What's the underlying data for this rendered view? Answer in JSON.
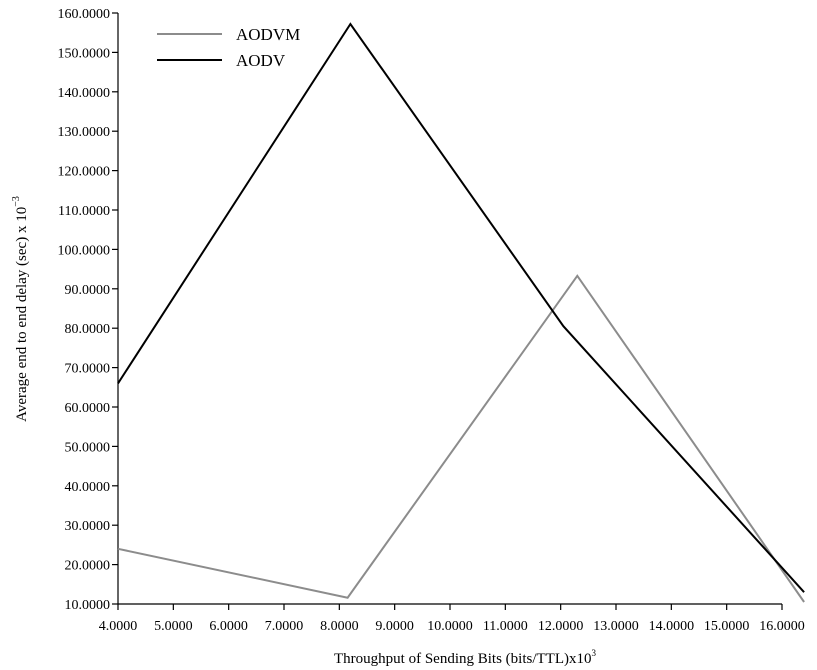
{
  "chart_data": {
    "type": "line",
    "xlabel": "Throughput of Sending Bits (bits/TTL)x10",
    "xlabel_superscript": "3",
    "ylabel": "Average end to end delay (sec) x 10",
    "ylabel_superscript": "−3",
    "xlim": [
      4,
      16
    ],
    "ylim": [
      10,
      160
    ],
    "x_ticks": [
      4,
      5,
      6,
      7,
      8,
      9,
      10,
      11,
      12,
      13,
      14,
      15,
      16
    ],
    "x_tick_labels": [
      "4.0000",
      "5.0000",
      "6.0000",
      "7.0000",
      "8.0000",
      "9.0000",
      "10.0000",
      "11.0000",
      "12.0000",
      "13.0000",
      "14.0000",
      "15.0000",
      "16.0000"
    ],
    "y_ticks": [
      10,
      20,
      30,
      40,
      50,
      60,
      70,
      80,
      90,
      100,
      110,
      120,
      130,
      140,
      150,
      160
    ],
    "y_tick_labels": [
      "10.0000",
      "20.0000",
      "30.0000",
      "40.0000",
      "50.0000",
      "60.0000",
      "70.0000",
      "80.0000",
      "90.0000",
      "100.0000",
      "110.0000",
      "120.0000",
      "130.0000",
      "140.0000",
      "150.0000",
      "160.0000"
    ],
    "grid": false,
    "legend_position": "top-left",
    "series": [
      {
        "name": "AODVM",
        "color": "#8c8c8c",
        "points": [
          [
            4.0,
            24.0
          ],
          [
            8.15,
            11.6
          ],
          [
            12.3,
            93.3
          ],
          [
            16.4,
            10.5
          ]
        ]
      },
      {
        "name": "AODV",
        "color": "#000000",
        "points": [
          [
            4.0,
            66.0
          ],
          [
            8.2,
            157.2
          ],
          [
            12.05,
            80.5
          ],
          [
            16.4,
            13.0
          ]
        ]
      }
    ]
  }
}
